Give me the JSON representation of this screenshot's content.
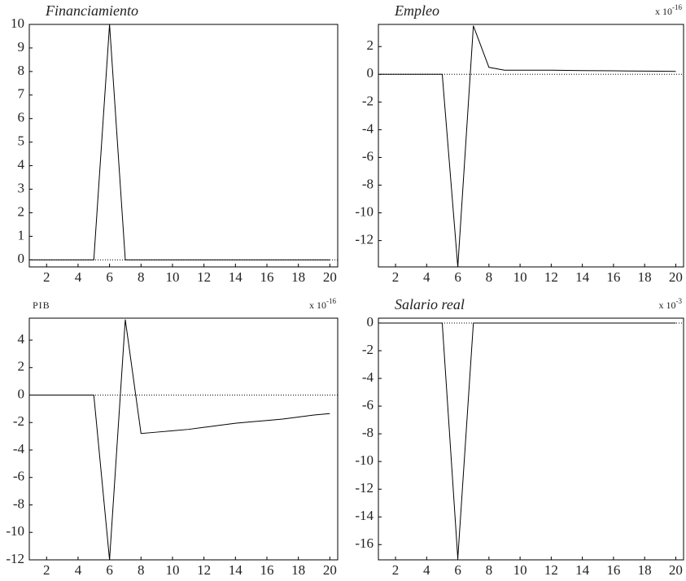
{
  "chart_data": [
    {
      "type": "line",
      "title": "Financiamiento",
      "italic": true,
      "x": [
        1,
        2,
        3,
        4,
        5,
        6,
        7,
        8,
        9,
        10,
        11,
        12,
        13,
        14,
        15,
        16,
        17,
        18,
        19,
        20
      ],
      "series": [
        {
          "color": "#000000",
          "values": [
            0,
            0,
            0,
            0,
            0,
            10,
            0,
            0,
            0,
            0,
            0,
            0,
            0,
            0,
            0,
            0,
            0,
            0,
            0,
            0
          ]
        }
      ],
      "steady_state": 0,
      "xlim": [
        0.9,
        20.5
      ],
      "xticks": [
        2,
        4,
        6,
        8,
        10,
        12,
        14,
        16,
        18,
        20
      ],
      "ylim": [
        -0.3,
        10
      ],
      "yticks": [
        0,
        1,
        2,
        3,
        4,
        5,
        6,
        7,
        8,
        9,
        10
      ]
    },
    {
      "type": "line",
      "title": "Empleo",
      "italic": true,
      "multiplier": "x 10",
      "exponent": "-16",
      "x": [
        1,
        2,
        3,
        4,
        5,
        6,
        7,
        8,
        9,
        10,
        11,
        12,
        13,
        14,
        15,
        16,
        17,
        18,
        19,
        20
      ],
      "series": [
        {
          "color": "#000000",
          "values": [
            0,
            0,
            0,
            0,
            0,
            -13.9,
            3.5,
            0.5,
            0.3,
            0.3,
            0.3,
            0.3,
            0.28,
            0.27,
            0.26,
            0.25,
            0.24,
            0.23,
            0.22,
            0.21
          ]
        }
      ],
      "steady_state": 0,
      "xlim": [
        0.9,
        20.5
      ],
      "xticks": [
        2,
        4,
        6,
        8,
        10,
        12,
        14,
        16,
        18,
        20
      ],
      "ylim": [
        -13.9,
        3.6
      ],
      "yticks": [
        -12,
        -10,
        -8,
        -6,
        -4,
        -2,
        0,
        2
      ]
    },
    {
      "type": "line",
      "title": "PIB",
      "italic": false,
      "multiplier": "x 10",
      "exponent": "-16",
      "x": [
        1,
        2,
        3,
        4,
        5,
        6,
        7,
        8,
        9,
        10,
        11,
        12,
        13,
        14,
        15,
        16,
        17,
        18,
        19,
        20
      ],
      "series": [
        {
          "color": "#000000",
          "values": [
            0,
            0,
            0,
            0,
            0,
            -12,
            5.5,
            -2.8,
            -2.7,
            -2.6,
            -2.5,
            -2.35,
            -2.2,
            -2.05,
            -1.95,
            -1.85,
            -1.75,
            -1.6,
            -1.45,
            -1.35
          ]
        }
      ],
      "steady_state": 0,
      "xlim": [
        0.9,
        20.5
      ],
      "xticks": [
        2,
        4,
        6,
        8,
        10,
        12,
        14,
        16,
        18,
        20
      ],
      "ylim": [
        -12,
        5.6
      ],
      "yticks": [
        -12,
        -10,
        -8,
        -6,
        -4,
        -2,
        0,
        2,
        4
      ]
    },
    {
      "type": "line",
      "title": "Salario real",
      "italic": true,
      "multiplier": "x 10",
      "exponent": "-3",
      "x": [
        1,
        2,
        3,
        4,
        5,
        6,
        7,
        8,
        9,
        10,
        11,
        12,
        13,
        14,
        15,
        16,
        17,
        18,
        19,
        20
      ],
      "series": [
        {
          "color": "#000000",
          "values": [
            0,
            0,
            0,
            0,
            0,
            -17,
            0,
            0,
            0,
            0,
            0,
            0,
            0,
            0,
            0,
            0,
            0,
            0,
            0,
            0
          ]
        }
      ],
      "steady_state": 0,
      "xlim": [
        0.9,
        20.5
      ],
      "xticks": [
        2,
        4,
        6,
        8,
        10,
        12,
        14,
        16,
        18,
        20
      ],
      "ylim": [
        -17.1,
        0.35
      ],
      "yticks": [
        -16,
        -14,
        -12,
        -10,
        -8,
        -6,
        -4,
        -2,
        0
      ]
    }
  ]
}
